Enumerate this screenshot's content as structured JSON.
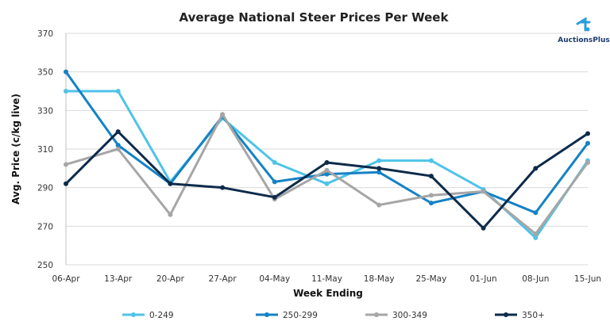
{
  "logo": {
    "text": "AuctionsPlus",
    "color": "#1a3a6b"
  },
  "chart_data": {
    "type": "line",
    "title": "Average National Steer Prices Per Week",
    "xlabel": "Week Ending",
    "ylabel": "Avg. Price (c/kg live)",
    "categories": [
      "06-Apr",
      "13-Apr",
      "20-Apr",
      "27-Apr",
      "04-May",
      "11-May",
      "18-May",
      "25-May",
      "01-Jun",
      "08-Jun",
      "15-Jun"
    ],
    "ylim": [
      250,
      370
    ],
    "yticks": [
      250,
      270,
      290,
      310,
      330,
      350,
      370
    ],
    "grid": true,
    "legend_position": "bottom",
    "series": [
      {
        "name": "0-249",
        "color": "#4fc3e8",
        "values": [
          340,
          340,
          293,
          326,
          303,
          292,
          304,
          304,
          289,
          264,
          304
        ]
      },
      {
        "name": "250-299",
        "color": "#1582c5",
        "values": [
          350,
          312,
          292,
          327,
          293,
          297,
          298,
          282,
          288,
          277,
          313
        ]
      },
      {
        "name": "300-349",
        "color": "#a6a6a6",
        "values": [
          302,
          310,
          276,
          328,
          284,
          299,
          281,
          286,
          288,
          266,
          303
        ]
      },
      {
        "name": "350+",
        "color": "#0d2b4a",
        "values": [
          292,
          319,
          292,
          290,
          285,
          303,
          300,
          296,
          269,
          300,
          318
        ]
      }
    ]
  }
}
